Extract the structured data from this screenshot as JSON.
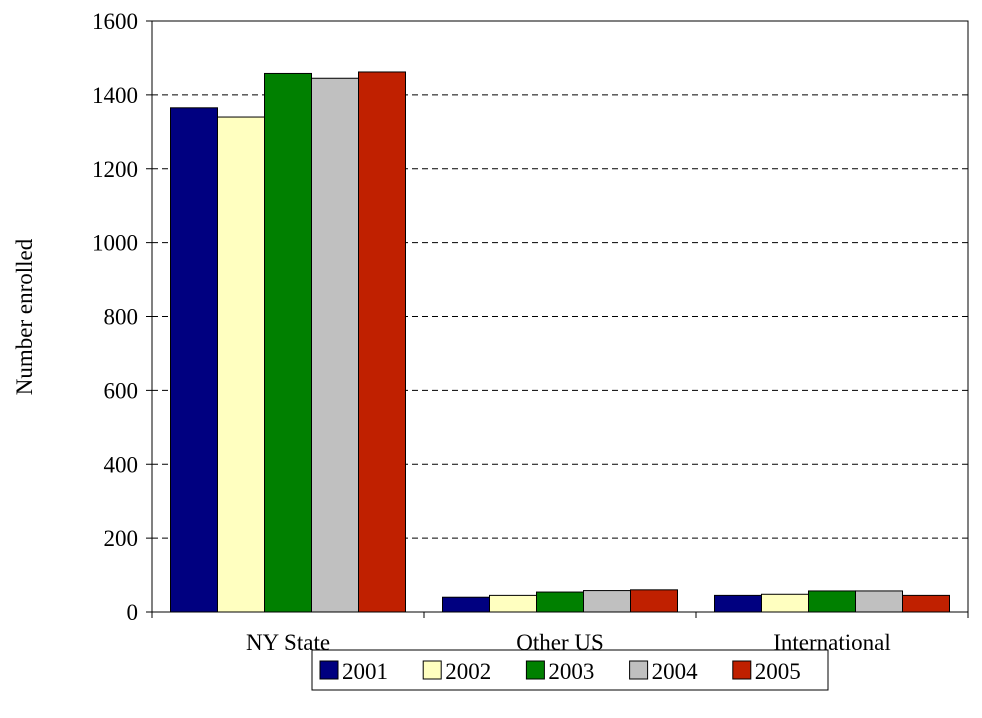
{
  "chart_data": {
    "type": "bar",
    "title": "",
    "xlabel": "",
    "ylabel": "Number enrolled",
    "ylim": [
      0,
      1600
    ],
    "yticks": [
      0,
      200,
      400,
      600,
      800,
      1000,
      1200,
      1400,
      1600
    ],
    "ytick_labels": [
      "0",
      "200",
      "400",
      "600",
      "800",
      "1000",
      "1200",
      "1400",
      "1600"
    ],
    "grid": "horizontal dashed",
    "legend_position": "bottom",
    "categories": [
      "NY State",
      "Other US",
      "International"
    ],
    "series": [
      {
        "name": "2001",
        "color": "#000080",
        "values": [
          1365,
          40,
          45
        ]
      },
      {
        "name": "2002",
        "color": "#FFFFC0",
        "values": [
          1340,
          45,
          48
        ]
      },
      {
        "name": "2003",
        "color": "#008000",
        "values": [
          1458,
          54,
          57
        ]
      },
      {
        "name": "2004",
        "color": "#C0C0C0",
        "values": [
          1445,
          58,
          57
        ]
      },
      {
        "name": "2005",
        "color": "#C02000",
        "values": [
          1462,
          60,
          45
        ]
      }
    ]
  }
}
